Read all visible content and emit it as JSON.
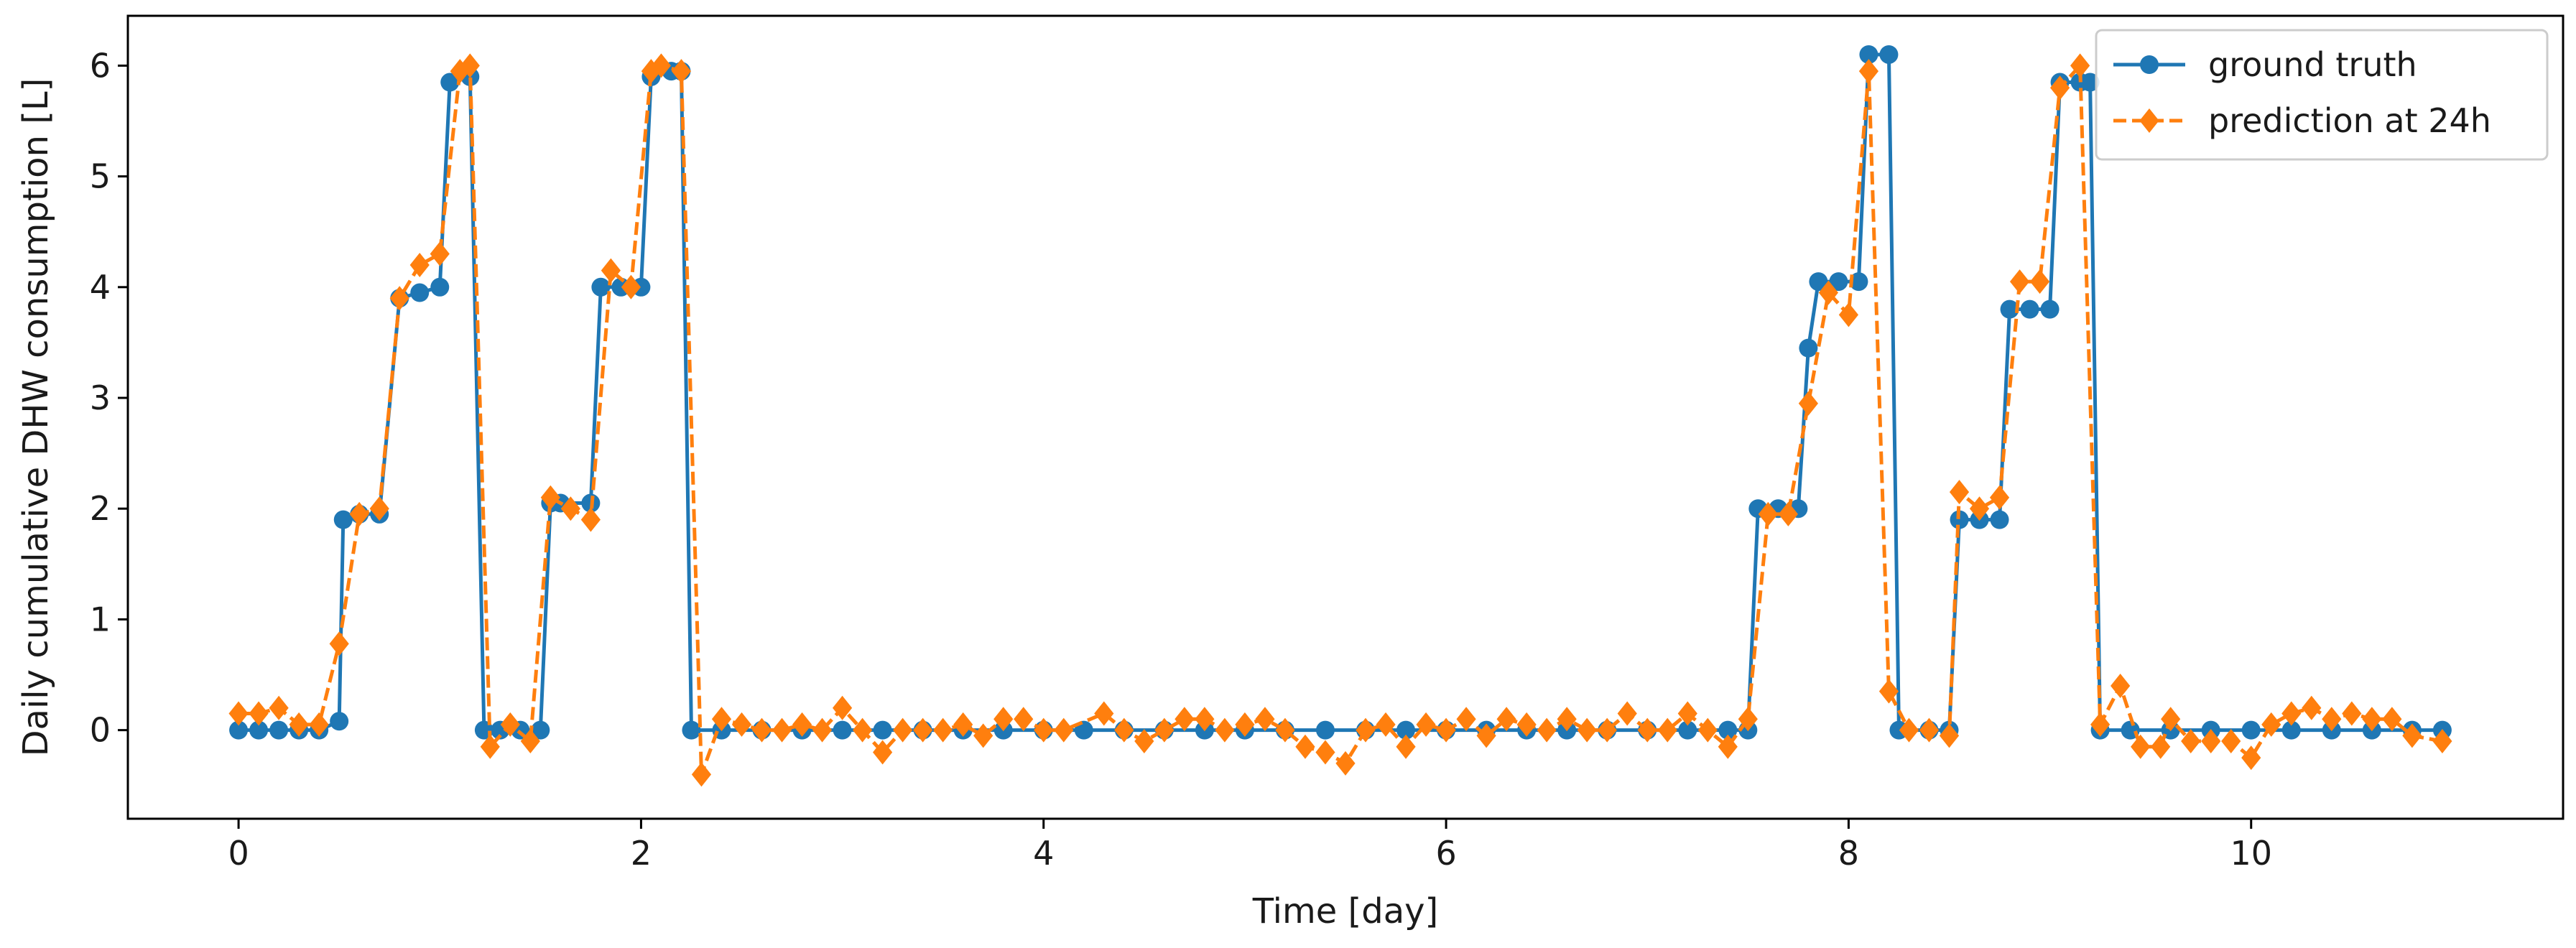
{
  "chart_data": {
    "type": "line",
    "title": "",
    "xlabel": "Time [day]",
    "ylabel": "Daily cumulative DHW consumption [L]",
    "xlim": [
      -0.55,
      11.55
    ],
    "ylim": [
      -0.8,
      6.45
    ],
    "xticks": [
      0,
      2,
      4,
      6,
      8,
      10
    ],
    "yticks": [
      0,
      1,
      2,
      3,
      4,
      5,
      6
    ],
    "grid": false,
    "legend": {
      "position": "top-right"
    },
    "series": [
      {
        "name": "ground truth",
        "color": "#1f77b4",
        "linestyle": "solid",
        "marker": "circle",
        "points": [
          [
            0.0,
            0.0
          ],
          [
            0.1,
            0.0
          ],
          [
            0.2,
            0.0
          ],
          [
            0.3,
            0.0
          ],
          [
            0.4,
            0.0
          ],
          [
            0.5,
            0.08
          ],
          [
            0.52,
            1.9
          ],
          [
            0.6,
            1.95
          ],
          [
            0.7,
            1.95
          ],
          [
            0.8,
            3.9
          ],
          [
            0.9,
            3.95
          ],
          [
            1.0,
            4.0
          ],
          [
            1.05,
            5.85
          ],
          [
            1.15,
            5.9
          ],
          [
            1.22,
            0.0
          ],
          [
            1.3,
            0.0
          ],
          [
            1.4,
            0.0
          ],
          [
            1.5,
            0.0
          ],
          [
            1.55,
            2.05
          ],
          [
            1.6,
            2.05
          ],
          [
            1.75,
            2.05
          ],
          [
            1.8,
            4.0
          ],
          [
            1.9,
            4.0
          ],
          [
            2.0,
            4.0
          ],
          [
            2.05,
            5.9
          ],
          [
            2.15,
            5.95
          ],
          [
            2.2,
            5.95
          ],
          [
            2.25,
            0.0
          ],
          [
            2.4,
            0.0
          ],
          [
            2.6,
            0.0
          ],
          [
            2.8,
            0.0
          ],
          [
            3.0,
            0.0
          ],
          [
            3.2,
            0.0
          ],
          [
            3.4,
            0.0
          ],
          [
            3.6,
            0.0
          ],
          [
            3.8,
            0.0
          ],
          [
            4.0,
            0.0
          ],
          [
            4.2,
            0.0
          ],
          [
            4.4,
            0.0
          ],
          [
            4.6,
            0.0
          ],
          [
            4.8,
            0.0
          ],
          [
            5.0,
            0.0
          ],
          [
            5.2,
            0.0
          ],
          [
            5.4,
            0.0
          ],
          [
            5.6,
            0.0
          ],
          [
            5.8,
            0.0
          ],
          [
            6.0,
            0.0
          ],
          [
            6.2,
            0.0
          ],
          [
            6.4,
            0.0
          ],
          [
            6.6,
            0.0
          ],
          [
            6.8,
            0.0
          ],
          [
            7.0,
            0.0
          ],
          [
            7.2,
            0.0
          ],
          [
            7.4,
            0.0
          ],
          [
            7.5,
            0.0
          ],
          [
            7.55,
            2.0
          ],
          [
            7.65,
            2.0
          ],
          [
            7.75,
            2.0
          ],
          [
            7.8,
            3.45
          ],
          [
            7.85,
            4.05
          ],
          [
            7.95,
            4.05
          ],
          [
            8.05,
            4.05
          ],
          [
            8.1,
            6.1
          ],
          [
            8.2,
            6.1
          ],
          [
            8.25,
            0.0
          ],
          [
            8.4,
            0.0
          ],
          [
            8.5,
            0.0
          ],
          [
            8.55,
            1.9
          ],
          [
            8.65,
            1.9
          ],
          [
            8.75,
            1.9
          ],
          [
            8.8,
            3.8
          ],
          [
            8.9,
            3.8
          ],
          [
            9.0,
            3.8
          ],
          [
            9.05,
            5.85
          ],
          [
            9.15,
            5.85
          ],
          [
            9.2,
            5.85
          ],
          [
            9.25,
            0.0
          ],
          [
            9.4,
            0.0
          ],
          [
            9.6,
            0.0
          ],
          [
            9.8,
            0.0
          ],
          [
            10.0,
            0.0
          ],
          [
            10.2,
            0.0
          ],
          [
            10.4,
            0.0
          ],
          [
            10.6,
            0.0
          ],
          [
            10.8,
            0.0
          ],
          [
            10.95,
            0.0
          ]
        ]
      },
      {
        "name": "prediction at 24h",
        "color": "#ff7f0e",
        "linestyle": "dashed",
        "marker": "diamond",
        "points": [
          [
            0.0,
            0.15
          ],
          [
            0.1,
            0.15
          ],
          [
            0.2,
            0.2
          ],
          [
            0.3,
            0.05
          ],
          [
            0.4,
            0.05
          ],
          [
            0.5,
            0.78
          ],
          [
            0.6,
            1.95
          ],
          [
            0.7,
            2.0
          ],
          [
            0.8,
            3.9
          ],
          [
            0.9,
            4.2
          ],
          [
            1.0,
            4.3
          ],
          [
            1.1,
            5.95
          ],
          [
            1.15,
            6.0
          ],
          [
            1.25,
            -0.15
          ],
          [
            1.35,
            0.05
          ],
          [
            1.45,
            -0.1
          ],
          [
            1.55,
            2.1
          ],
          [
            1.65,
            2.0
          ],
          [
            1.75,
            1.9
          ],
          [
            1.85,
            4.15
          ],
          [
            1.95,
            4.0
          ],
          [
            2.05,
            5.95
          ],
          [
            2.1,
            6.0
          ],
          [
            2.2,
            5.95
          ],
          [
            2.3,
            -0.4
          ],
          [
            2.4,
            0.1
          ],
          [
            2.5,
            0.05
          ],
          [
            2.6,
            0.0
          ],
          [
            2.7,
            0.0
          ],
          [
            2.8,
            0.05
          ],
          [
            2.9,
            0.0
          ],
          [
            3.0,
            0.2
          ],
          [
            3.1,
            0.0
          ],
          [
            3.2,
            -0.2
          ],
          [
            3.3,
            0.0
          ],
          [
            3.4,
            0.0
          ],
          [
            3.5,
            0.0
          ],
          [
            3.6,
            0.05
          ],
          [
            3.7,
            -0.05
          ],
          [
            3.8,
            0.1
          ],
          [
            3.9,
            0.1
          ],
          [
            4.0,
            0.0
          ],
          [
            4.1,
            0.0
          ],
          [
            4.3,
            0.15
          ],
          [
            4.4,
            0.0
          ],
          [
            4.5,
            -0.1
          ],
          [
            4.6,
            0.0
          ],
          [
            4.7,
            0.1
          ],
          [
            4.8,
            0.1
          ],
          [
            4.9,
            0.0
          ],
          [
            5.0,
            0.05
          ],
          [
            5.1,
            0.1
          ],
          [
            5.2,
            0.0
          ],
          [
            5.3,
            -0.15
          ],
          [
            5.4,
            -0.2
          ],
          [
            5.5,
            -0.3
          ],
          [
            5.6,
            0.0
          ],
          [
            5.7,
            0.05
          ],
          [
            5.8,
            -0.15
          ],
          [
            5.9,
            0.05
          ],
          [
            6.0,
            0.0
          ],
          [
            6.1,
            0.1
          ],
          [
            6.2,
            -0.05
          ],
          [
            6.3,
            0.1
          ],
          [
            6.4,
            0.05
          ],
          [
            6.5,
            0.0
          ],
          [
            6.6,
            0.1
          ],
          [
            6.7,
            0.0
          ],
          [
            6.8,
            0.0
          ],
          [
            6.9,
            0.15
          ],
          [
            7.0,
            0.0
          ],
          [
            7.1,
            0.0
          ],
          [
            7.2,
            0.15
          ],
          [
            7.3,
            0.0
          ],
          [
            7.4,
            -0.15
          ],
          [
            7.5,
            0.1
          ],
          [
            7.6,
            1.95
          ],
          [
            7.7,
            1.95
          ],
          [
            7.8,
            2.95
          ],
          [
            7.9,
            3.95
          ],
          [
            8.0,
            3.75
          ],
          [
            8.1,
            5.95
          ],
          [
            8.2,
            0.35
          ],
          [
            8.3,
            0.0
          ],
          [
            8.4,
            0.0
          ],
          [
            8.5,
            -0.05
          ],
          [
            8.55,
            2.15
          ],
          [
            8.65,
            2.0
          ],
          [
            8.75,
            2.1
          ],
          [
            8.85,
            4.05
          ],
          [
            8.95,
            4.05
          ],
          [
            9.05,
            5.8
          ],
          [
            9.15,
            6.0
          ],
          [
            9.25,
            0.05
          ],
          [
            9.35,
            0.4
          ],
          [
            9.45,
            -0.15
          ],
          [
            9.55,
            -0.15
          ],
          [
            9.6,
            0.1
          ],
          [
            9.7,
            -0.1
          ],
          [
            9.8,
            -0.1
          ],
          [
            9.9,
            -0.1
          ],
          [
            10.0,
            -0.25
          ],
          [
            10.1,
            0.05
          ],
          [
            10.2,
            0.15
          ],
          [
            10.3,
            0.2
          ],
          [
            10.4,
            0.1
          ],
          [
            10.5,
            0.15
          ],
          [
            10.6,
            0.1
          ],
          [
            10.7,
            0.1
          ],
          [
            10.8,
            -0.05
          ],
          [
            10.95,
            -0.1
          ]
        ]
      }
    ]
  }
}
